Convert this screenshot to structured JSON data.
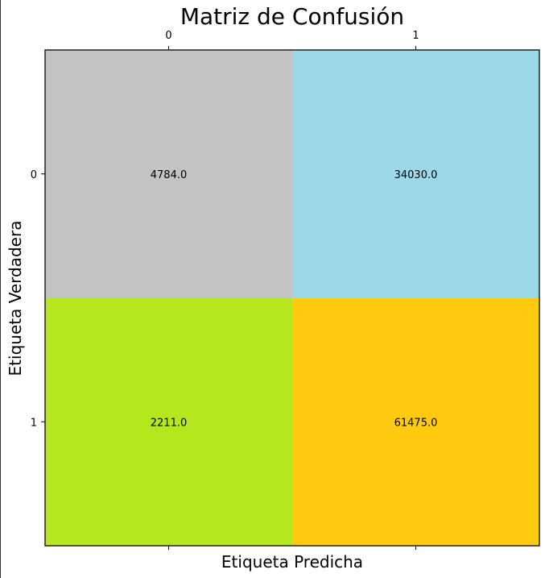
{
  "chart_data": {
    "type": "heatmap",
    "title": "Matriz de Confusión",
    "xlabel": "Etiqueta Predicha",
    "ylabel": "Etiqueta Verdadera",
    "x_categories": [
      "0",
      "1"
    ],
    "y_categories": [
      "0",
      "1"
    ],
    "values": [
      [
        4784.0,
        34030.0
      ],
      [
        2211.0,
        61475.0
      ]
    ],
    "value_labels": [
      [
        "4784.0",
        "34030.0"
      ],
      [
        "2211.0",
        "61475.0"
      ]
    ],
    "cell_colors": [
      [
        "#c3c3c3",
        "#9cd9e8"
      ],
      [
        "#b6e61e",
        "#ffca10"
      ]
    ],
    "x_ticks_position": "top",
    "x_label_position": "bottom",
    "grid": false,
    "legend": "none"
  }
}
